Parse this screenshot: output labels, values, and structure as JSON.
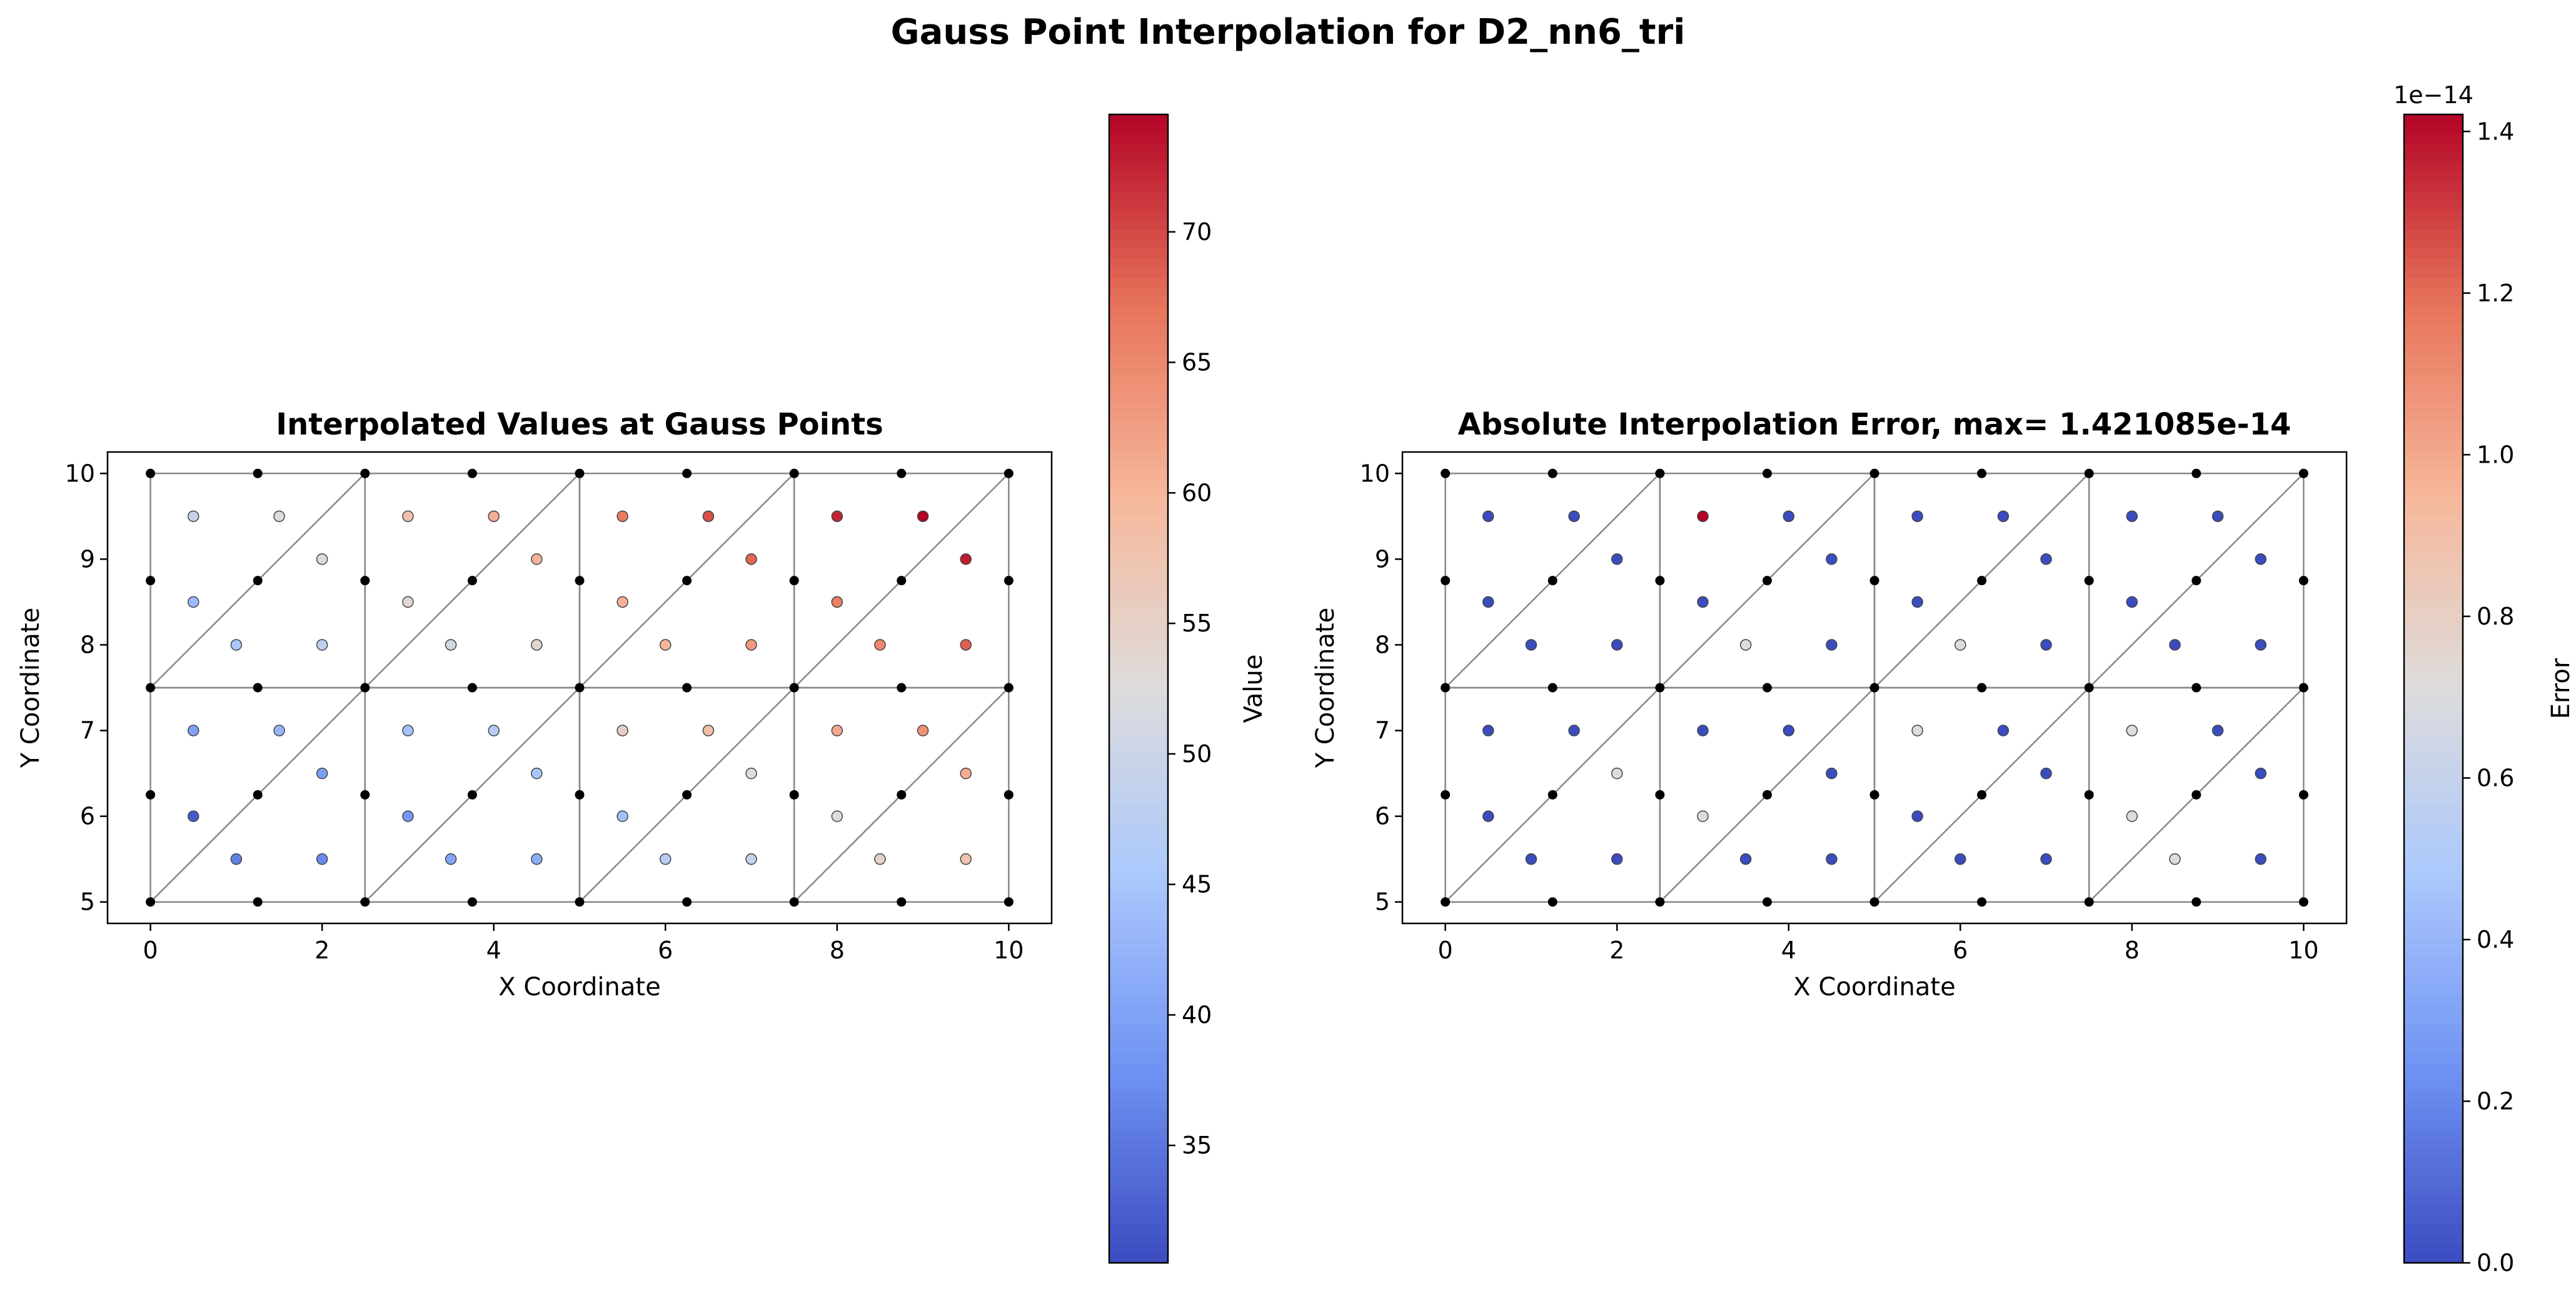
{
  "figure_title": "Gauss Point Interpolation for D2_nn6_tri",
  "colormap": "coolwarm",
  "colormap_stops": [
    "#3b4cc0",
    "#6f92f3",
    "#aac7fd",
    "#dddcdc",
    "#f7b89c",
    "#e7745b",
    "#b40426"
  ],
  "chart_data": [
    {
      "type": "scatter",
      "title": "Interpolated Values at Gauss Points",
      "xlabel": "X Coordinate",
      "ylabel": "Y Coordinate",
      "xlim": [
        -0.5,
        10.5
      ],
      "ylim": [
        4.75,
        10.25
      ],
      "xticks": [
        "0",
        "2",
        "4",
        "6",
        "8",
        "10"
      ],
      "yticks": [
        "5",
        "6",
        "7",
        "8",
        "9",
        "10"
      ],
      "grid": false,
      "colorbar": {
        "label": "Value",
        "range": [
          30.5,
          74.5
        ],
        "ticks": [
          "35",
          "40",
          "45",
          "50",
          "55",
          "60",
          "65",
          "70"
        ],
        "offset_text": ""
      },
      "mesh": {
        "nodes_x": [
          0,
          1.25,
          2.5,
          3.75,
          5,
          6.25,
          7.5,
          8.75,
          10
        ],
        "nodes_y": [
          5,
          6.25,
          7.5,
          8.75,
          10
        ],
        "element_edges_x": [
          0,
          2.5,
          5,
          7.5,
          10
        ],
        "element_edges_y": [
          5,
          7.5,
          10
        ]
      },
      "points": [
        {
          "x": 0.5,
          "y": 9.5,
          "v": 49.5
        },
        {
          "x": 1.5,
          "y": 9.5,
          "v": 52.5
        },
        {
          "x": 0.5,
          "y": 8.5,
          "v": 43.5
        },
        {
          "x": 2.0,
          "y": 9.0,
          "v": 53.0
        },
        {
          "x": 1.0,
          "y": 8.0,
          "v": 45.0
        },
        {
          "x": 2.0,
          "y": 8.0,
          "v": 48.0
        },
        {
          "x": 3.0,
          "y": 9.5,
          "v": 58.0
        },
        {
          "x": 4.0,
          "y": 9.5,
          "v": 61.0
        },
        {
          "x": 3.0,
          "y": 8.5,
          "v": 53.5
        },
        {
          "x": 4.5,
          "y": 9.0,
          "v": 60.5
        },
        {
          "x": 3.5,
          "y": 8.0,
          "v": 51.0
        },
        {
          "x": 4.5,
          "y": 8.0,
          "v": 54.0
        },
        {
          "x": 5.5,
          "y": 9.5,
          "v": 66.5
        },
        {
          "x": 6.5,
          "y": 9.5,
          "v": 69.5
        },
        {
          "x": 5.5,
          "y": 8.5,
          "v": 60.5
        },
        {
          "x": 7.0,
          "y": 9.0,
          "v": 68.0
        },
        {
          "x": 6.0,
          "y": 8.0,
          "v": 60.0
        },
        {
          "x": 7.0,
          "y": 8.0,
          "v": 63.0
        },
        {
          "x": 8.0,
          "y": 9.5,
          "v": 72.5
        },
        {
          "x": 9.0,
          "y": 9.5,
          "v": 74.5
        },
        {
          "x": 8.0,
          "y": 8.5,
          "v": 66.0
        },
        {
          "x": 9.5,
          "y": 9.0,
          "v": 73.0
        },
        {
          "x": 8.5,
          "y": 8.0,
          "v": 65.0
        },
        {
          "x": 9.5,
          "y": 8.0,
          "v": 68.5
        },
        {
          "x": 0.5,
          "y": 7.0,
          "v": 40.0
        },
        {
          "x": 1.5,
          "y": 7.0,
          "v": 42.5
        },
        {
          "x": 0.5,
          "y": 6.0,
          "v": 32.0
        },
        {
          "x": 2.0,
          "y": 6.5,
          "v": 39.5
        },
        {
          "x": 1.0,
          "y": 5.5,
          "v": 36.0
        },
        {
          "x": 2.0,
          "y": 5.5,
          "v": 37.0
        },
        {
          "x": 3.0,
          "y": 7.0,
          "v": 44.5
        },
        {
          "x": 4.0,
          "y": 7.0,
          "v": 47.0
        },
        {
          "x": 3.0,
          "y": 6.0,
          "v": 38.5
        },
        {
          "x": 4.5,
          "y": 6.5,
          "v": 45.0
        },
        {
          "x": 3.5,
          "y": 5.5,
          "v": 40.5
        },
        {
          "x": 4.5,
          "y": 5.5,
          "v": 41.5
        },
        {
          "x": 5.5,
          "y": 7.0,
          "v": 55.0
        },
        {
          "x": 6.5,
          "y": 7.0,
          "v": 58.5
        },
        {
          "x": 5.5,
          "y": 6.0,
          "v": 44.0
        },
        {
          "x": 7.0,
          "y": 6.5,
          "v": 52.5
        },
        {
          "x": 6.0,
          "y": 5.5,
          "v": 47.0
        },
        {
          "x": 7.0,
          "y": 5.5,
          "v": 48.5
        },
        {
          "x": 8.0,
          "y": 7.0,
          "v": 61.5
        },
        {
          "x": 9.0,
          "y": 7.0,
          "v": 64.0
        },
        {
          "x": 8.0,
          "y": 6.0,
          "v": 52.5
        },
        {
          "x": 9.5,
          "y": 6.5,
          "v": 61.0
        },
        {
          "x": 8.5,
          "y": 5.5,
          "v": 54.5
        },
        {
          "x": 9.5,
          "y": 5.5,
          "v": 57.5
        }
      ]
    },
    {
      "type": "scatter",
      "title": "Absolute Interpolation Error, max= 1.421085e-14",
      "xlabel": "X Coordinate",
      "ylabel": "Y Coordinate",
      "xlim": [
        -0.5,
        10.5
      ],
      "ylim": [
        4.75,
        10.25
      ],
      "xticks": [
        "0",
        "2",
        "4",
        "6",
        "8",
        "10"
      ],
      "yticks": [
        "5",
        "6",
        "7",
        "8",
        "9",
        "10"
      ],
      "grid": false,
      "colorbar": {
        "label": "Error",
        "range": [
          0.0,
          1.421085
        ],
        "ticks": [
          "0.0",
          "0.2",
          "0.4",
          "0.6",
          "0.8",
          "1.0",
          "1.2",
          "1.4"
        ],
        "offset_text": "1e−14"
      },
      "mesh": {
        "nodes_x": [
          0,
          1.25,
          2.5,
          3.75,
          5,
          6.25,
          7.5,
          8.75,
          10
        ],
        "nodes_y": [
          5,
          6.25,
          7.5,
          8.75,
          10
        ],
        "element_edges_x": [
          0,
          2.5,
          5,
          7.5,
          10
        ],
        "element_edges_y": [
          5,
          7.5,
          10
        ]
      },
      "points": [
        {
          "x": 0.5,
          "y": 9.5,
          "v": 0.0
        },
        {
          "x": 1.5,
          "y": 9.5,
          "v": 0.0
        },
        {
          "x": 0.5,
          "y": 8.5,
          "v": 0.0
        },
        {
          "x": 2.0,
          "y": 9.0,
          "v": 0.0
        },
        {
          "x": 1.0,
          "y": 8.0,
          "v": 0.0
        },
        {
          "x": 2.0,
          "y": 8.0,
          "v": 0.0
        },
        {
          "x": 3.0,
          "y": 9.5,
          "v": 1.421085
        },
        {
          "x": 4.0,
          "y": 9.5,
          "v": 0.0
        },
        {
          "x": 3.0,
          "y": 8.5,
          "v": 0.0
        },
        {
          "x": 4.5,
          "y": 9.0,
          "v": 0.0
        },
        {
          "x": 3.5,
          "y": 8.0,
          "v": 0.71
        },
        {
          "x": 4.5,
          "y": 8.0,
          "v": 0.0
        },
        {
          "x": 5.5,
          "y": 9.5,
          "v": 0.0
        },
        {
          "x": 6.5,
          "y": 9.5,
          "v": 0.0
        },
        {
          "x": 5.5,
          "y": 8.5,
          "v": 0.0
        },
        {
          "x": 7.0,
          "y": 9.0,
          "v": 0.0
        },
        {
          "x": 6.0,
          "y": 8.0,
          "v": 0.71
        },
        {
          "x": 7.0,
          "y": 8.0,
          "v": 0.0
        },
        {
          "x": 8.0,
          "y": 9.5,
          "v": 0.0
        },
        {
          "x": 9.0,
          "y": 9.5,
          "v": 0.0
        },
        {
          "x": 8.0,
          "y": 8.5,
          "v": 0.0
        },
        {
          "x": 9.5,
          "y": 9.0,
          "v": 0.0
        },
        {
          "x": 8.5,
          "y": 8.0,
          "v": 0.0
        },
        {
          "x": 9.5,
          "y": 8.0,
          "v": 0.0
        },
        {
          "x": 0.5,
          "y": 7.0,
          "v": 0.0
        },
        {
          "x": 1.5,
          "y": 7.0,
          "v": 0.0
        },
        {
          "x": 0.5,
          "y": 6.0,
          "v": 0.0
        },
        {
          "x": 2.0,
          "y": 6.5,
          "v": 0.71
        },
        {
          "x": 1.0,
          "y": 5.5,
          "v": 0.0
        },
        {
          "x": 2.0,
          "y": 5.5,
          "v": 0.0
        },
        {
          "x": 3.0,
          "y": 7.0,
          "v": 0.0
        },
        {
          "x": 4.0,
          "y": 7.0,
          "v": 0.0
        },
        {
          "x": 3.0,
          "y": 6.0,
          "v": 0.71
        },
        {
          "x": 4.5,
          "y": 6.5,
          "v": 0.0
        },
        {
          "x": 3.5,
          "y": 5.5,
          "v": 0.0
        },
        {
          "x": 4.5,
          "y": 5.5,
          "v": 0.0
        },
        {
          "x": 5.5,
          "y": 7.0,
          "v": 0.71
        },
        {
          "x": 6.5,
          "y": 7.0,
          "v": 0.0
        },
        {
          "x": 5.5,
          "y": 6.0,
          "v": 0.0
        },
        {
          "x": 7.0,
          "y": 6.5,
          "v": 0.0
        },
        {
          "x": 6.0,
          "y": 5.5,
          "v": 0.0
        },
        {
          "x": 7.0,
          "y": 5.5,
          "v": 0.0
        },
        {
          "x": 8.0,
          "y": 7.0,
          "v": 0.71
        },
        {
          "x": 9.0,
          "y": 7.0,
          "v": 0.0
        },
        {
          "x": 8.0,
          "y": 6.0,
          "v": 0.71
        },
        {
          "x": 9.5,
          "y": 6.5,
          "v": 0.0
        },
        {
          "x": 8.5,
          "y": 5.5,
          "v": 0.71
        },
        {
          "x": 9.5,
          "y": 5.5,
          "v": 0.0
        }
      ]
    }
  ]
}
